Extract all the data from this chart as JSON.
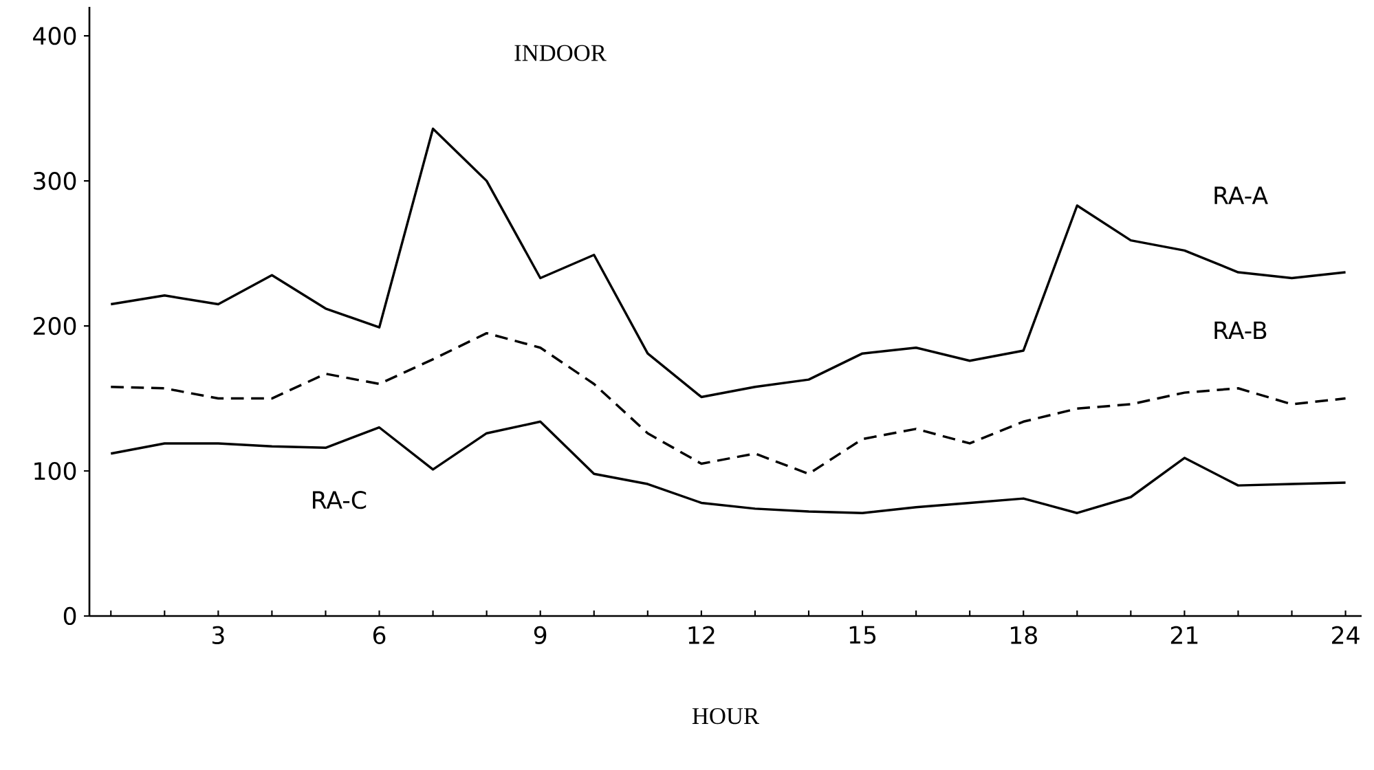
{
  "chart_data": {
    "type": "line",
    "title": "INDOOR",
    "xlabel": "HOUR",
    "x": [
      1,
      2,
      3,
      4,
      5,
      6,
      7,
      8,
      9,
      10,
      11,
      12,
      13,
      14,
      15,
      16,
      17,
      18,
      19,
      20,
      21,
      22,
      23,
      24
    ],
    "xlim": [
      0.6,
      24.3
    ],
    "xticks": [
      {
        "value": 1,
        "label": null
      },
      {
        "value": 2,
        "label": null
      },
      3,
      {
        "value": 4,
        "label": null
      },
      {
        "value": 5,
        "label": null
      },
      6,
      {
        "value": 7,
        "label": null
      },
      {
        "value": 8,
        "label": null
      },
      9,
      {
        "value": 10,
        "label": null
      },
      {
        "value": 11,
        "label": null
      },
      12,
      {
        "value": 13,
        "label": null
      },
      {
        "value": 14,
        "label": null
      },
      15,
      {
        "value": 16,
        "label": null
      },
      {
        "value": 17,
        "label": null
      },
      18,
      {
        "value": 19,
        "label": null
      },
      {
        "value": 20,
        "label": null
      },
      21,
      {
        "value": 22,
        "label": null
      },
      {
        "value": 23,
        "label": null
      },
      24
    ],
    "ylim": [
      0,
      420
    ],
    "yticks": [
      0,
      100,
      200,
      300,
      400
    ],
    "series": [
      {
        "name": "RA-A",
        "color": "#000000",
        "line_style": "solid",
        "values": [
          215,
          221,
          215,
          235,
          212,
          199,
          336,
          300,
          233,
          249,
          181,
          151,
          158,
          163,
          181,
          185,
          176,
          183,
          283,
          259,
          252,
          237,
          233,
          237
        ]
      },
      {
        "name": "RA-B",
        "color": "#000000",
        "line_style": "dashed",
        "values": [
          158,
          157,
          150,
          150,
          167,
          160,
          177,
          195,
          185,
          160,
          126,
          105,
          112,
          98,
          122,
          129,
          119,
          134,
          143,
          146,
          154,
          157,
          146,
          150
        ]
      },
      {
        "name": "RA-C",
        "color": "#000000",
        "line_style": "solid",
        "values": [
          112,
          119,
          119,
          117,
          116,
          130,
          101,
          126,
          134,
          98,
          91,
          78,
          74,
          72,
          71,
          75,
          78,
          81,
          71,
          82,
          109,
          90,
          91,
          92
        ]
      }
    ]
  }
}
